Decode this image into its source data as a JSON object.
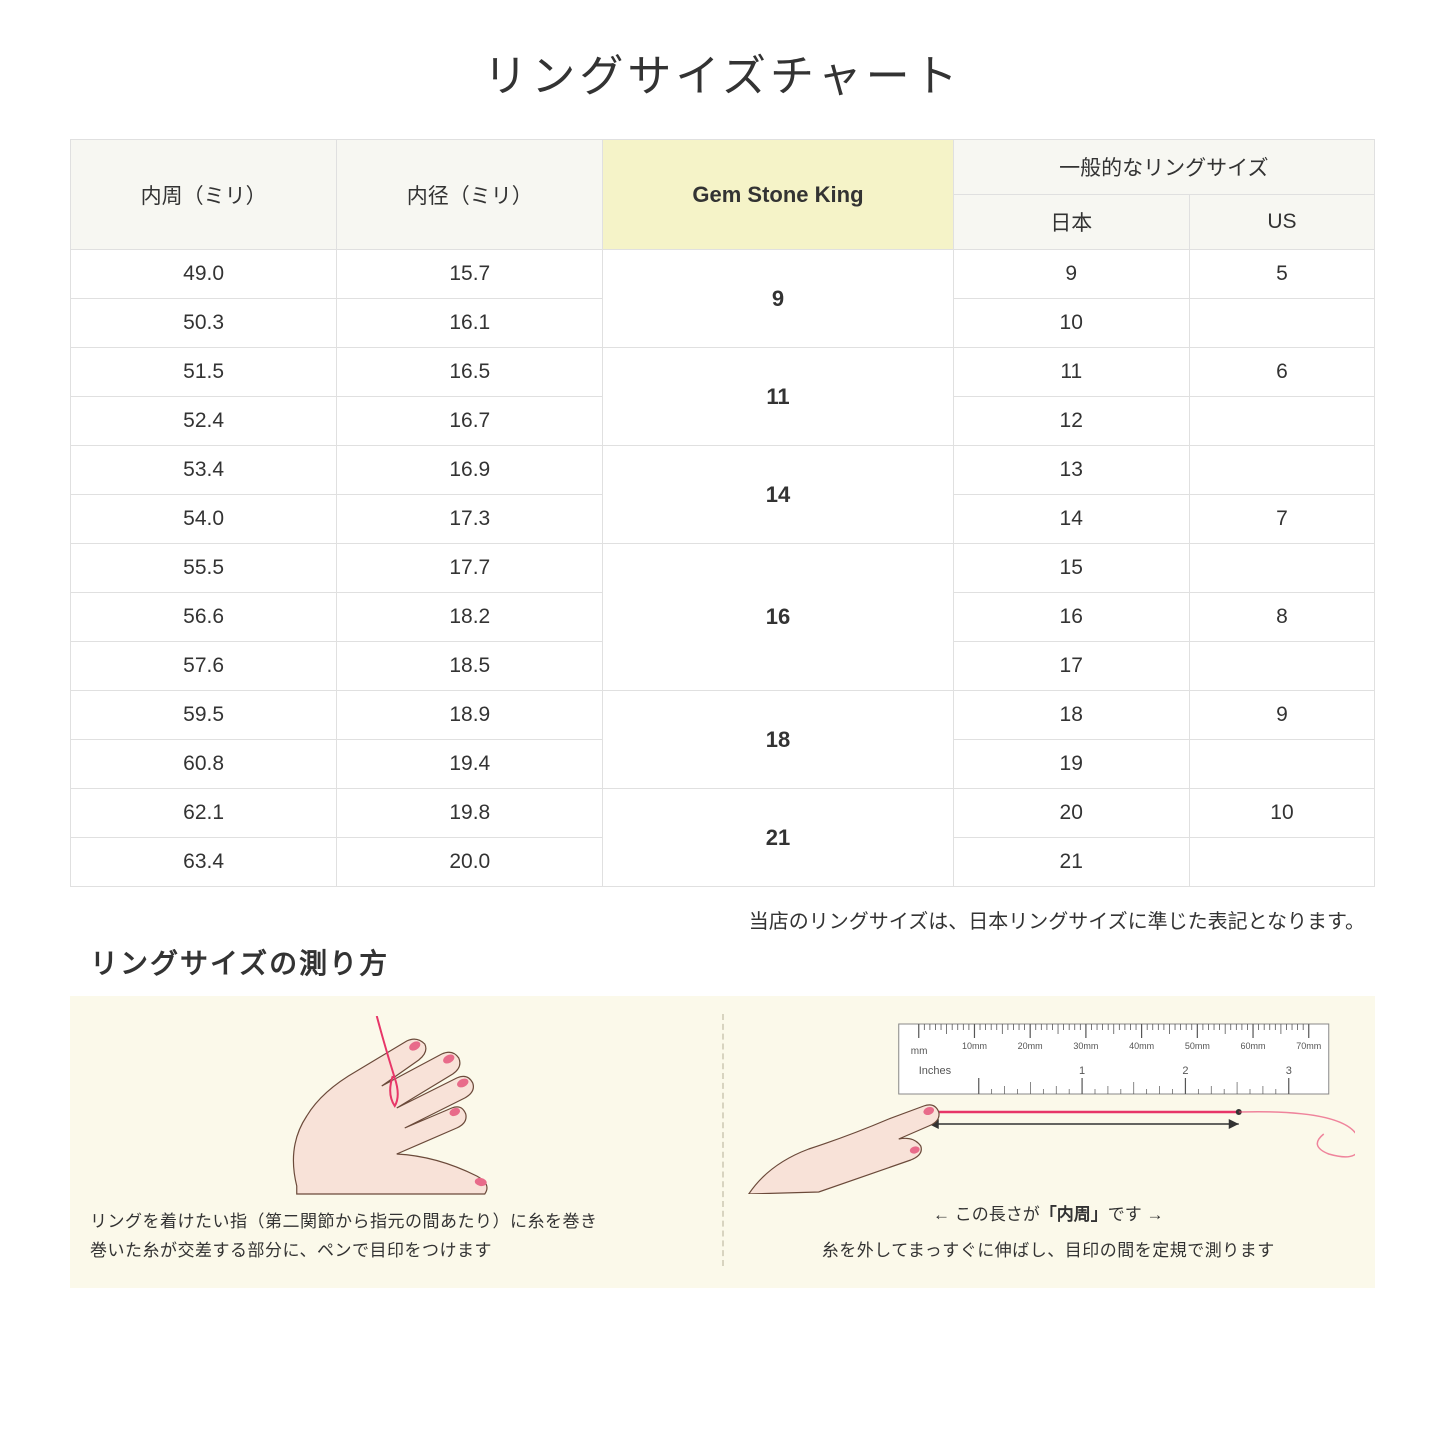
{
  "title": "リングサイズチャート",
  "table": {
    "headers": {
      "circumference": "内周（ミリ）",
      "diameter": "内径（ミリ）",
      "gsk": "Gem Stone King",
      "general": "一般的なリングサイズ",
      "jp": "日本",
      "us": "US"
    },
    "groups": [
      {
        "gsk": "9",
        "rows": [
          {
            "c": "49.0",
            "d": "15.7",
            "jp": "9",
            "us": "5"
          },
          {
            "c": "50.3",
            "d": "16.1",
            "jp": "10",
            "us": ""
          }
        ]
      },
      {
        "gsk": "11",
        "rows": [
          {
            "c": "51.5",
            "d": "16.5",
            "jp": "11",
            "us": "6"
          },
          {
            "c": "52.4",
            "d": "16.7",
            "jp": "12",
            "us": ""
          }
        ]
      },
      {
        "gsk": "14",
        "rows": [
          {
            "c": "53.4",
            "d": "16.9",
            "jp": "13",
            "us": ""
          },
          {
            "c": "54.0",
            "d": "17.3",
            "jp": "14",
            "us": "7"
          }
        ]
      },
      {
        "gsk": "16",
        "rows": [
          {
            "c": "55.5",
            "d": "17.7",
            "jp": "15",
            "us": ""
          },
          {
            "c": "56.6",
            "d": "18.2",
            "jp": "16",
            "us": "8"
          },
          {
            "c": "57.6",
            "d": "18.5",
            "jp": "17",
            "us": ""
          }
        ]
      },
      {
        "gsk": "18",
        "rows": [
          {
            "c": "59.5",
            "d": "18.9",
            "jp": "18",
            "us": "9"
          },
          {
            "c": "60.8",
            "d": "19.4",
            "jp": "19",
            "us": ""
          }
        ]
      },
      {
        "gsk": "21",
        "rows": [
          {
            "c": "62.1",
            "d": "19.8",
            "jp": "20",
            "us": "10"
          },
          {
            "c": "63.4",
            "d": "20.0",
            "jp": "21",
            "us": ""
          }
        ]
      }
    ],
    "colors": {
      "header_bg": "#f7f7f2",
      "gsk_header_bg": "#f5f3c8",
      "border": "#e0e0e0"
    }
  },
  "note": "当店のリングサイズは、日本リングサイズに準じた表記となります。",
  "subtitle": "リングサイズの測り方",
  "instructions": {
    "left_caption": "リングを着けたい指（第二関節から指元の間あたり）に糸を巻き\n巻いた糸が交差する部分に、ペンで目印をつけます",
    "right_caption": "糸を外してまっすぐに伸ばし、目印の間を定規で測ります",
    "ruler_label_prefix": "この長さが",
    "ruler_label_quote": "「内周」",
    "ruler_label_suffix": "です",
    "background": "#fbf9ea",
    "hand_fill": "#f8e2d8",
    "hand_stroke": "#6b4a3a",
    "nail_color": "#e86b8a",
    "thread_color": "#e73668",
    "ruler_tick_labels_mm": [
      "10mm",
      "20mm",
      "30mm",
      "40mm",
      "50mm",
      "60mm",
      "70mm"
    ],
    "ruler_inches_label": "Inches",
    "ruler_mm_label": "mm"
  }
}
